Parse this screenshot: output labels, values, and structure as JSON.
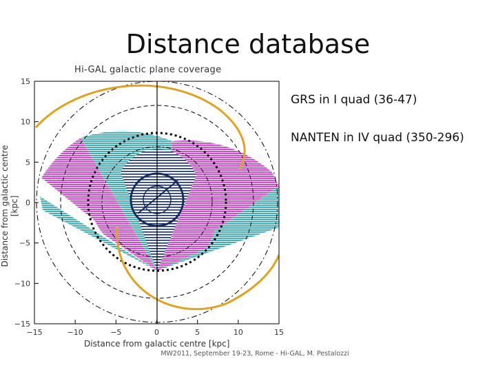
{
  "slide": {
    "title": "Distance database",
    "notes": [
      "GRS in I quad (36-47)",
      "NANTEN in IV quad (350-296)"
    ],
    "footer": "MW2011, September 19-23, Rome - Hi-GAL, M. Pestalozzi"
  },
  "plot": {
    "title": "Hi-GAL galactic plane coverage",
    "xlabel": "Distance from galactic centre [kpc]",
    "ylabel": "Distance from galactic centre [kpc]",
    "xlim": [
      -15,
      15
    ],
    "ylim": [
      -15,
      15
    ],
    "xticks": [
      "-15",
      "-10",
      "-5",
      "0",
      "5",
      "10",
      "15"
    ],
    "yticks": [
      "15",
      "10",
      "5",
      "0",
      "-5",
      "-10",
      "-15"
    ],
    "colors": {
      "magenta": "#d534d8",
      "cyan": "#2aa6b4",
      "orange": "#e3a21a",
      "navy": "#152a5e"
    }
  }
}
